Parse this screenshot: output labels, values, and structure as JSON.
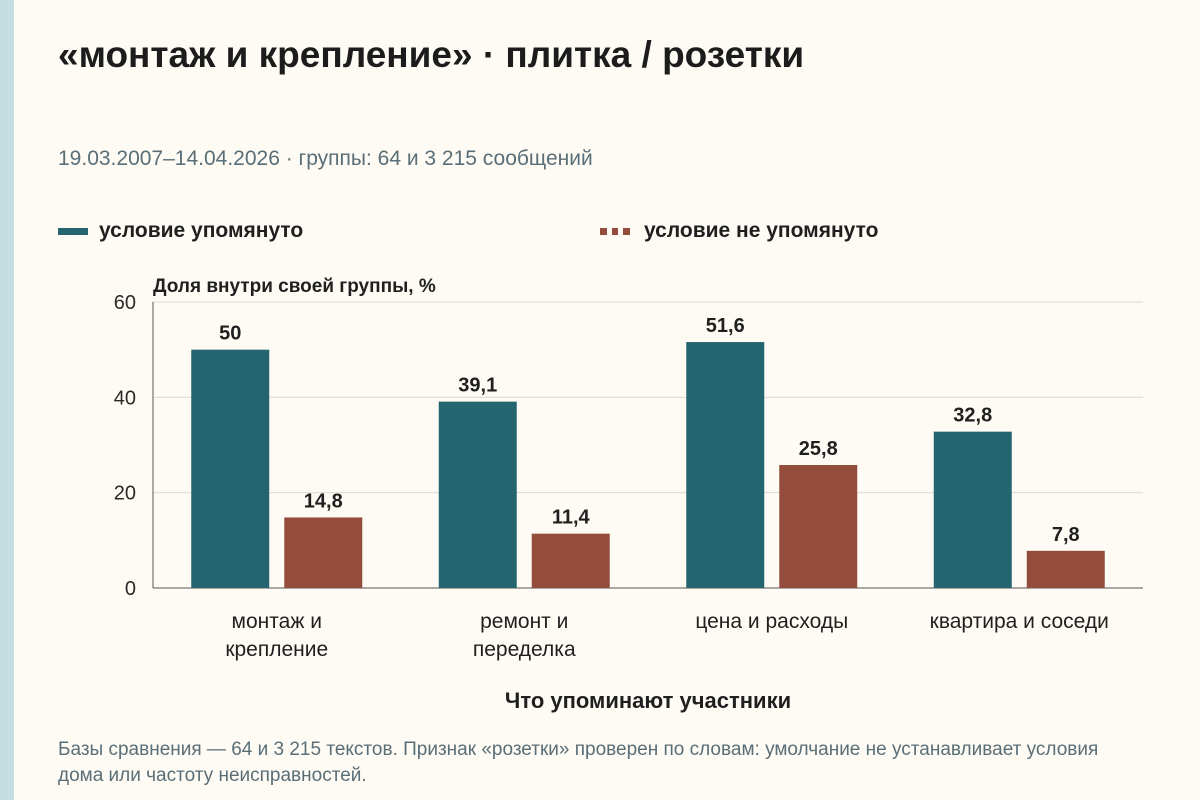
{
  "header": {
    "title": "«монтаж и крепление» · плитка / розетки",
    "subtitle": "19.03.2007–14.04.2026 · группы: 64 и 3 215 сообщений"
  },
  "legend": {
    "mentioned": "условие упомянуто",
    "not_mentioned": "условие не упомянуто"
  },
  "colors": {
    "mentioned": "#256570",
    "not_mentioned": "#944c3c",
    "grid": "#dcdcd4",
    "axis": "#555555"
  },
  "chart_data": {
    "type": "bar",
    "title": "«монтаж и крепление» · плитка / розетки",
    "subtitle": "19.03.2007–14.04.2026 · группы: 64 и 3 215 сообщений",
    "ylabel": "Доля внутри своей группы, %",
    "xlabel": "Что упоминают участники",
    "ylim": [
      0,
      60
    ],
    "yticks": [
      0,
      20,
      40,
      60
    ],
    "grid": true,
    "legend_position": "top-left",
    "categories": [
      [
        "монтаж и",
        "крепление"
      ],
      [
        "ремонт и",
        "переделка"
      ],
      [
        "цена и расходы"
      ],
      [
        "квартира и соседи"
      ]
    ],
    "series": [
      {
        "name": "условие упомянуто",
        "values": [
          50,
          39.1,
          51.6,
          32.8
        ],
        "labels": [
          "50",
          "39,1",
          "51,6",
          "32,8"
        ]
      },
      {
        "name": "условие не упомянуто",
        "values": [
          14.8,
          11.4,
          25.8,
          7.8
        ],
        "labels": [
          "14,8",
          "11,4",
          "25,8",
          "7,8"
        ]
      }
    ]
  },
  "footnote": "Базы сравнения — 64 и 3 215 текстов. Признак «розетки» проверен по словам: умолчание не устанавливает условия дома или частоту неисправностей."
}
